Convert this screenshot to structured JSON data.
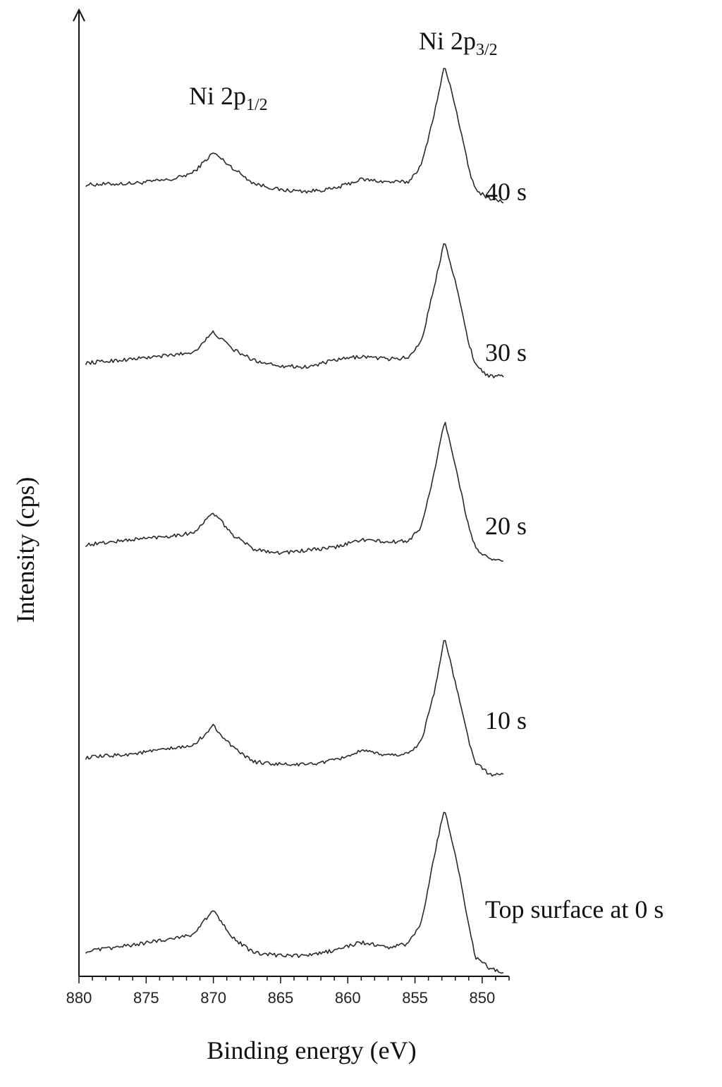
{
  "chart_data": {
    "type": "line",
    "xlabel": "Binding energy (eV)",
    "ylabel": "Intensity (cps)",
    "xlim": [
      880,
      848
    ],
    "x_reversed": true,
    "x_ticks": [
      880,
      875,
      870,
      865,
      860,
      855,
      850
    ],
    "y_ticks": [],
    "grid": false,
    "stacked_offset": true,
    "peak_labels": [
      {
        "base": "Ni 2p",
        "sub": "1/2",
        "x": 870
      },
      {
        "base": "Ni 2p",
        "sub": "3/2",
        "x": 852.8
      }
    ],
    "series": [
      {
        "name": "40 s",
        "x": [
          879.5,
          876,
          873,
          871.5,
          870,
          868.5,
          867,
          865,
          863,
          861,
          859,
          857,
          855.5,
          854.5,
          853.5,
          852.8,
          852,
          851,
          850.5,
          849.5,
          848.3
        ],
        "values": [
          0.0,
          0.01,
          0.04,
          0.09,
          0.24,
          0.12,
          0.01,
          -0.04,
          -0.05,
          -0.03,
          0.04,
          0.02,
          0.02,
          0.15,
          0.56,
          0.89,
          0.59,
          0.12,
          -0.04,
          -0.1,
          -0.13
        ]
      },
      {
        "name": "30 s",
        "x": [
          879.5,
          876,
          873,
          871.5,
          870,
          868.5,
          867,
          865,
          863,
          861,
          859,
          857,
          855.5,
          854.5,
          853.5,
          852.8,
          852,
          851,
          850.5,
          849.5,
          848.3
        ],
        "values": [
          0.0,
          0.03,
          0.06,
          0.08,
          0.23,
          0.1,
          0.02,
          -0.02,
          -0.03,
          0.02,
          0.05,
          0.03,
          0.04,
          0.17,
          0.6,
          0.92,
          0.61,
          0.15,
          -0.01,
          -0.1,
          -0.1
        ]
      },
      {
        "name": "20 s",
        "x": [
          879.5,
          876,
          873,
          871.5,
          870,
          868.5,
          867,
          865,
          863,
          861,
          859,
          857,
          855.5,
          854.5,
          853.5,
          852.8,
          852,
          851,
          850.5,
          849.5,
          848.3
        ],
        "values": [
          0.0,
          0.04,
          0.07,
          0.09,
          0.24,
          0.07,
          -0.03,
          -0.06,
          -0.04,
          -0.02,
          0.04,
          0.02,
          0.03,
          0.14,
          0.57,
          0.93,
          0.6,
          0.13,
          -0.02,
          -0.11,
          -0.12
        ]
      },
      {
        "name": "10 s",
        "x": [
          879.5,
          876,
          873,
          871.5,
          870,
          868.5,
          867,
          865,
          863,
          861,
          859,
          857,
          855.5,
          854.5,
          853.5,
          852.8,
          852,
          851,
          850.5,
          849.5,
          848.3
        ],
        "values": [
          0.0,
          0.03,
          0.07,
          0.09,
          0.24,
          0.07,
          -0.03,
          -0.05,
          -0.05,
          -0.02,
          0.05,
          0.02,
          0.03,
          0.13,
          0.52,
          0.9,
          0.56,
          0.13,
          -0.04,
          -0.12,
          -0.13
        ]
      },
      {
        "name": "Top surface at 0 s",
        "x": [
          879.5,
          876,
          873,
          871.5,
          870,
          868.5,
          867,
          865,
          863,
          861,
          859,
          857,
          855.5,
          854.5,
          853.5,
          852.8,
          852,
          851,
          850.5,
          849.5,
          848.3
        ],
        "values": [
          0.0,
          0.05,
          0.1,
          0.13,
          0.31,
          0.1,
          -0.01,
          -0.03,
          -0.03,
          0.01,
          0.07,
          0.03,
          0.06,
          0.22,
          0.75,
          1.07,
          0.73,
          0.2,
          -0.04,
          -0.12,
          -0.17
        ]
      }
    ]
  }
}
